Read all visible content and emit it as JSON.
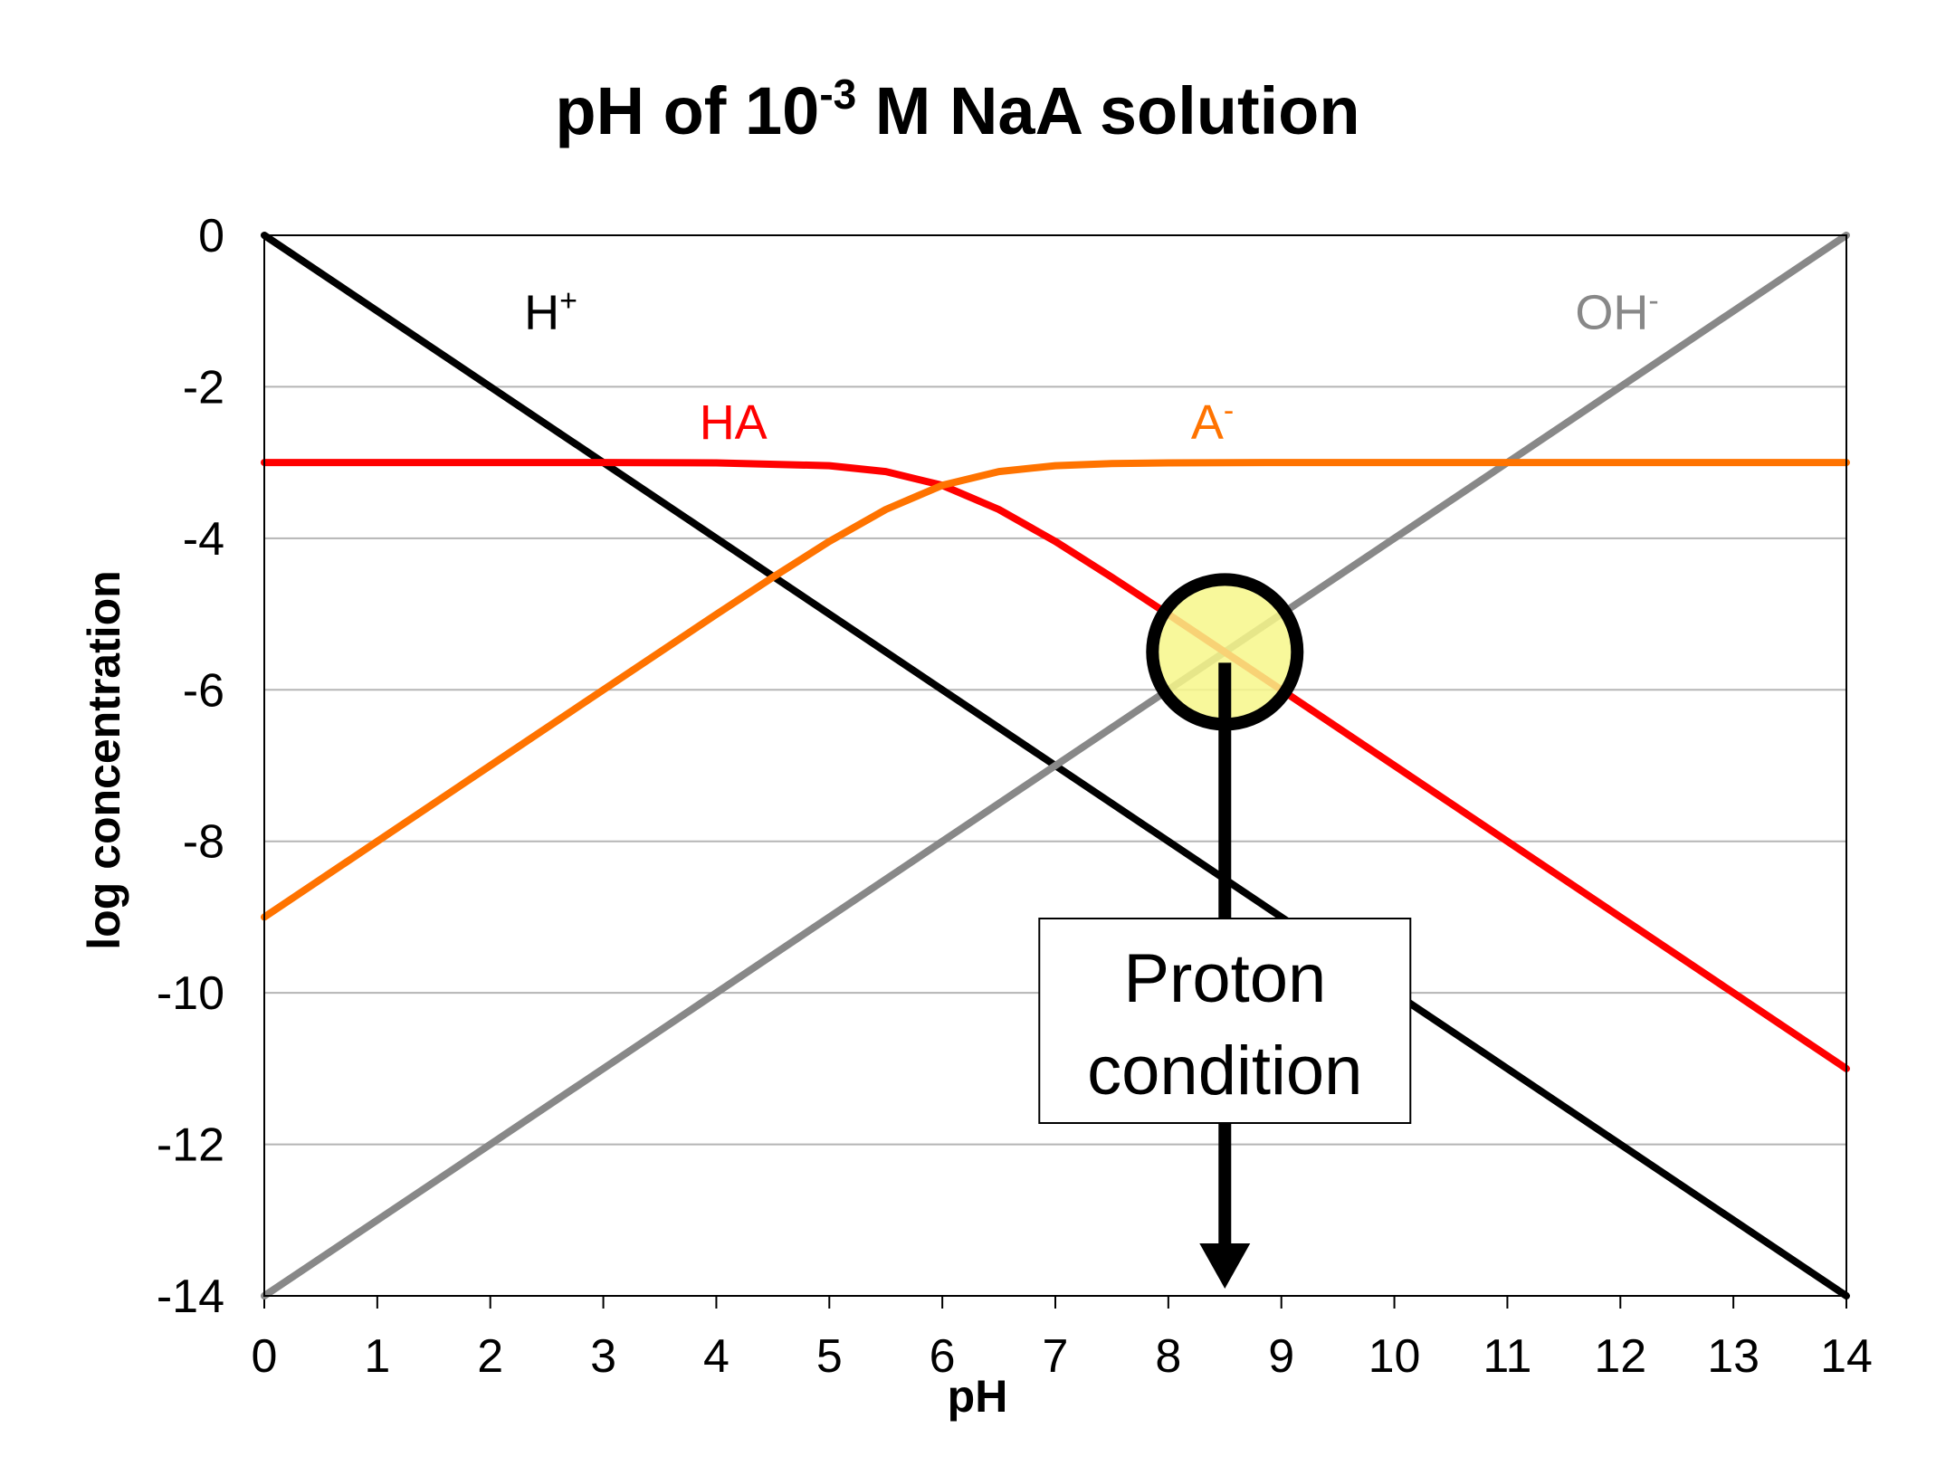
{
  "chart_data": {
    "type": "line",
    "title": {
      "main": "pH of 10",
      "sup": "-3",
      "rest": " M NaA solution"
    },
    "xlabel": "pH",
    "ylabel": "log concentration",
    "xlim": [
      0,
      14
    ],
    "ylim": [
      -14,
      0
    ],
    "xticks": [
      0,
      1,
      2,
      3,
      4,
      5,
      6,
      7,
      8,
      9,
      10,
      11,
      12,
      13,
      14
    ],
    "yticks": [
      0,
      -2,
      -4,
      -6,
      -8,
      -10,
      -12,
      -14
    ],
    "grid": true,
    "total_log_concentration": -3,
    "pKa": 6,
    "pKw": 14,
    "series": [
      {
        "name": "H+",
        "label": "H",
        "sup": "+",
        "color": "#000000",
        "x": [
          0,
          14
        ],
        "y": [
          0,
          -14
        ],
        "label_at": [
          2.3,
          -1
        ]
      },
      {
        "name": "OH-",
        "label": "OH",
        "sup": "-",
        "color": "#888888",
        "x": [
          0,
          14
        ],
        "y": [
          -14,
          0
        ],
        "label_at": [
          11.6,
          -1
        ]
      },
      {
        "name": "HA",
        "label": "HA",
        "sup": "",
        "color": "#ff0000",
        "x": [
          0,
          1,
          2,
          3,
          4,
          5,
          5.5,
          6,
          6.5,
          7,
          7.5,
          8,
          9,
          10,
          11,
          12,
          13,
          14
        ],
        "y": [
          -3,
          -3,
          -3,
          -3,
          -3.004,
          -3.041,
          -3.119,
          -3.301,
          -3.619,
          -4.041,
          -4.514,
          -5.004,
          -6,
          -7,
          -8,
          -9,
          -10,
          -11
        ],
        "label_at": [
          3.85,
          -2.45
        ]
      },
      {
        "name": "A-",
        "label": "A",
        "sup": "-",
        "color": "#ff7300",
        "x": [
          0,
          1,
          2,
          3,
          4,
          4.5,
          5,
          5.5,
          6,
          6.5,
          7,
          7.5,
          8,
          9,
          10,
          11,
          12,
          13,
          14
        ],
        "y": [
          -9,
          -8,
          -7,
          -6,
          -5.004,
          -4.514,
          -4.041,
          -3.619,
          -3.301,
          -3.119,
          -3.041,
          -3.014,
          -3.004,
          -3,
          -3,
          -3,
          -3,
          -3,
          -3
        ],
        "label_at": [
          8.2,
          -2.45
        ]
      }
    ],
    "annotation": {
      "text_line1": "Proton",
      "text_line2": "condition",
      "point": [
        8.5,
        -5.5
      ],
      "highlight_color": "#f7f78a",
      "arrow_to_x": 8.5
    }
  }
}
